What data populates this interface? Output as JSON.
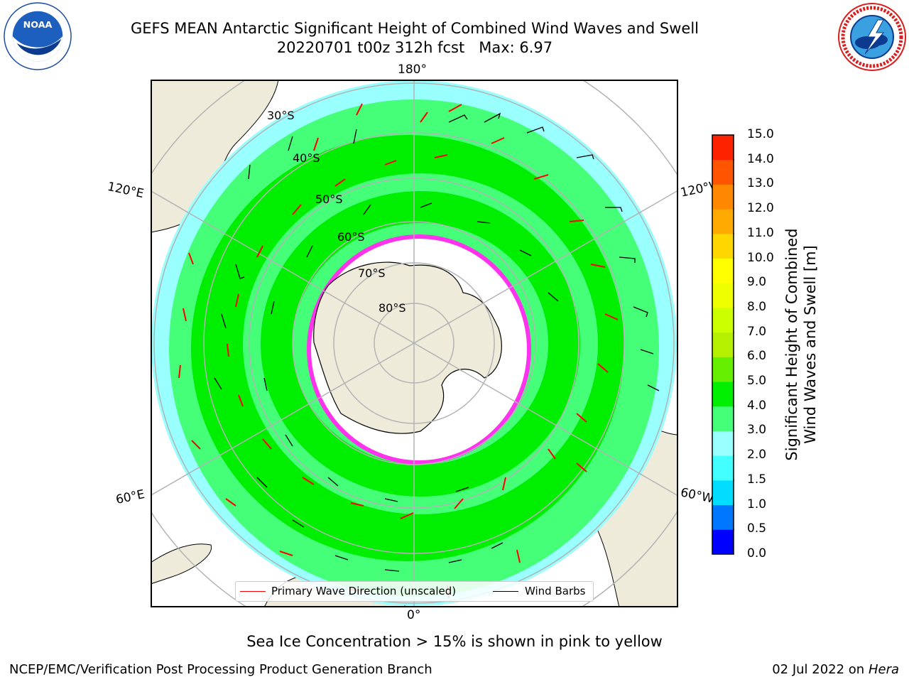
{
  "title": {
    "line1": "GEFS MEAN Antarctic Significant Height of Combined Wind Waves and Swell",
    "line2": "20220701 t00z 312h fcst   Max: 6.97"
  },
  "map": {
    "projection": "south-polar-stereographic",
    "longitude_labels": {
      "top": "180°",
      "bottom": "0°",
      "left_upper": "120°E",
      "left_lower": "60°E",
      "right_upper": "120°W",
      "right_lower": "60°W"
    },
    "latitude_labels": [
      "30°S",
      "40°S",
      "50°S",
      "60°S",
      "70°S",
      "80°S"
    ],
    "colors": {
      "land": "#efebda",
      "ocean_missing": "#ffffff",
      "grid": "#b3b3b3",
      "coast": "#000000"
    }
  },
  "legend": {
    "wave_direction": "Primary Wave Direction (unscaled)",
    "wind_barbs": "Wind Barbs",
    "wave_color": "#ff0000",
    "barb_color": "#000000"
  },
  "colorbar": {
    "label_line1": "Significant Height of Combined",
    "label_line2": "Wind Waves and Swell [m]",
    "ticks": [
      "15.0",
      "14.0",
      "13.0",
      "12.0",
      "11.0",
      "10.0",
      "9.0",
      "8.0",
      "7.0",
      "6.0",
      "5.0",
      "4.0",
      "3.0",
      "2.0",
      "1.5",
      "1.0",
      "0.5",
      "0.0"
    ],
    "colors_bottom_to_top": [
      "#0000ff",
      "#0077ff",
      "#00ddff",
      "#44ffff",
      "#99ffff",
      "#44ff77",
      "#00ee00",
      "#66ee00",
      "#b4f000",
      "#ccff00",
      "#eeff00",
      "#ffff00",
      "#ffd700",
      "#ffaa00",
      "#ff8800",
      "#ff5500",
      "#ff2200"
    ]
  },
  "footer": {
    "note": "Sea Ice Concentration > 15% is shown in pink to yellow",
    "credit_left": "NCEP/EMC/Verification Post Processing Product Generation Branch",
    "credit_right_date": "02 Jul 2022 on",
    "credit_right_host": "Hera"
  },
  "logos": {
    "left": "noaa-logo",
    "right": "nws-logo"
  }
}
